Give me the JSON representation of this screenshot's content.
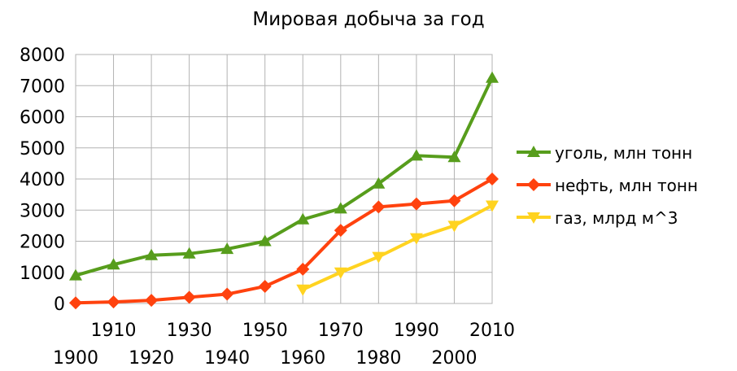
{
  "chart_data": {
    "type": "line",
    "title": "Мировая добыча за год",
    "xlabel": "",
    "ylabel": "",
    "x": [
      1900,
      1910,
      1920,
      1930,
      1940,
      1950,
      1960,
      1970,
      1980,
      1990,
      2000,
      2010
    ],
    "ylim": [
      0,
      8000
    ],
    "yticks": [
      "0",
      "1000",
      "2000",
      "3000",
      "4000",
      "5000",
      "6000",
      "7000",
      "8000"
    ],
    "xticks_upper": [
      "1910",
      "1930",
      "1950",
      "1970",
      "1990",
      "2010"
    ],
    "xticks_lower": [
      "1900",
      "1920",
      "1940",
      "1960",
      "1980",
      "2000"
    ],
    "grid": true,
    "legend_position": "right",
    "series": [
      {
        "name": "уголь, млн тонн",
        "color": "#579d1c",
        "marker": "triangle-up",
        "values": [
          900,
          1250,
          1550,
          1600,
          1750,
          2000,
          2700,
          3050,
          3850,
          4750,
          4700,
          7250
        ]
      },
      {
        "name": "нефть, млн тонн",
        "color": "#ff420e",
        "marker": "diamond",
        "values": [
          20,
          50,
          100,
          200,
          300,
          550,
          1100,
          2350,
          3100,
          3200,
          3300,
          4000
        ]
      },
      {
        "name": "газ, млрд м^3",
        "color": "#ffd320",
        "marker": "triangle-down",
        "values": [
          null,
          null,
          null,
          null,
          null,
          null,
          450,
          1000,
          1500,
          2100,
          2500,
          3150
        ]
      }
    ]
  }
}
